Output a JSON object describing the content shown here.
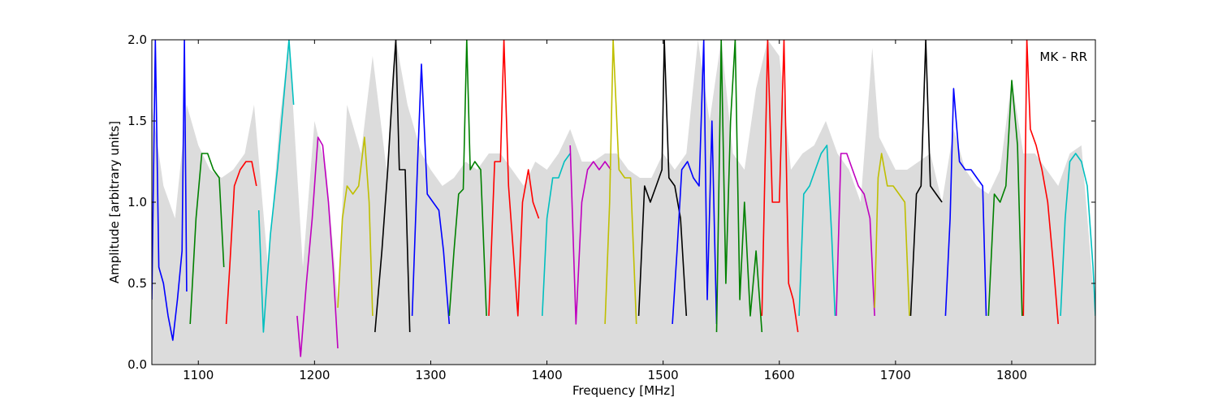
{
  "chart_data": {
    "type": "line",
    "title": "",
    "xlabel": "Frequency [MHz]",
    "ylabel": "Amplitude [arbitrary units]",
    "annotation": "MK - RR",
    "xlim": [
      1060,
      1872
    ],
    "ylim": [
      0.0,
      2.0
    ],
    "xticks": [
      1100,
      1200,
      1300,
      1400,
      1500,
      1600,
      1700,
      1800
    ],
    "yticks": [
      0.0,
      0.5,
      1.0,
      1.5,
      2.0
    ],
    "xtick_labels": [
      "1100",
      "1200",
      "1300",
      "1400",
      "1500",
      "1600",
      "1700",
      "1800"
    ],
    "ytick_labels": [
      "0.0",
      "0.5",
      "1.0",
      "1.5",
      "2.0"
    ],
    "grid": false,
    "background_envelope": {
      "color": "#bfbfbf",
      "x": [
        1060,
        1070,
        1080,
        1090,
        1100,
        1110,
        1120,
        1130,
        1140,
        1148,
        1160,
        1170,
        1178,
        1190,
        1200,
        1210,
        1220,
        1228,
        1240,
        1250,
        1262,
        1270,
        1280,
        1292,
        1300,
        1310,
        1320,
        1330,
        1340,
        1350,
        1360,
        1370,
        1380,
        1390,
        1400,
        1410,
        1420,
        1430,
        1440,
        1450,
        1460,
        1470,
        1480,
        1490,
        1500,
        1510,
        1520,
        1530,
        1540,
        1550,
        1560,
        1570,
        1580,
        1590,
        1600,
        1610,
        1620,
        1630,
        1640,
        1650,
        1660,
        1670,
        1680,
        1686,
        1700,
        1710,
        1720,
        1730,
        1740,
        1750,
        1760,
        1770,
        1780,
        1790,
        1800,
        1810,
        1820,
        1830,
        1840,
        1850,
        1860,
        1872
      ],
      "values": [
        1.6,
        1.1,
        0.9,
        1.6,
        1.35,
        1.2,
        1.15,
        1.2,
        1.3,
        1.6,
        0.6,
        1.5,
        2.0,
        0.6,
        1.5,
        1.2,
        0.4,
        1.6,
        1.3,
        1.9,
        1.2,
        2.0,
        1.6,
        1.3,
        1.2,
        1.1,
        1.15,
        1.25,
        1.2,
        1.3,
        1.3,
        1.2,
        1.1,
        1.25,
        1.2,
        1.3,
        1.45,
        1.25,
        1.25,
        1.3,
        1.3,
        1.2,
        1.15,
        1.15,
        1.3,
        1.2,
        1.3,
        2.0,
        1.5,
        2.0,
        1.3,
        1.2,
        1.7,
        2.0,
        1.9,
        1.2,
        1.3,
        1.35,
        1.5,
        1.3,
        1.2,
        1.0,
        1.95,
        1.4,
        1.2,
        1.2,
        1.25,
        1.3,
        1.0,
        1.45,
        1.2,
        1.1,
        1.05,
        1.2,
        1.75,
        1.3,
        1.3,
        1.2,
        1.1,
        1.3,
        1.35,
        0.3
      ]
    },
    "series": [
      {
        "color": "#0000ff",
        "x": [
          1060,
          1063,
          1066,
          1070,
          1074,
          1078,
          1082,
          1086,
          1088,
          1090
        ],
        "y": [
          0.4,
          2.0,
          0.6,
          0.5,
          0.3,
          0.15,
          0.4,
          0.7,
          2.0,
          0.45
        ]
      },
      {
        "color": "#008000",
        "x": [
          1093,
          1098,
          1103,
          1108,
          1113,
          1118,
          1122
        ],
        "y": [
          0.25,
          0.9,
          1.3,
          1.3,
          1.2,
          1.15,
          0.6
        ]
      },
      {
        "color": "#ff0000",
        "x": [
          1124,
          1127,
          1131,
          1136,
          1141,
          1146,
          1150
        ],
        "y": [
          0.25,
          0.6,
          1.1,
          1.2,
          1.25,
          1.25,
          1.1
        ]
      },
      {
        "color": "#00bfbf",
        "x": [
          1152,
          1156,
          1162,
          1168,
          1173,
          1178,
          1182
        ],
        "y": [
          0.95,
          0.2,
          0.8,
          1.2,
          1.6,
          2.0,
          1.6
        ]
      },
      {
        "color": "#bf00bf",
        "x": [
          1185,
          1188,
          1193,
          1198,
          1203,
          1207,
          1212,
          1216,
          1220
        ],
        "y": [
          0.3,
          0.05,
          0.5,
          0.9,
          1.4,
          1.35,
          1.0,
          0.6,
          0.1
        ]
      },
      {
        "color": "#bfbf00",
        "x": [
          1220,
          1224,
          1228,
          1233,
          1238,
          1243,
          1247,
          1250
        ],
        "y": [
          0.35,
          0.9,
          1.1,
          1.05,
          1.1,
          1.4,
          1.0,
          0.3
        ]
      },
      {
        "color": "#000000",
        "x": [
          1252,
          1258,
          1263,
          1268,
          1270,
          1273,
          1278,
          1282
        ],
        "y": [
          0.2,
          0.7,
          1.2,
          1.8,
          2.0,
          1.2,
          1.2,
          0.2
        ]
      },
      {
        "color": "#0000ff",
        "x": [
          1284,
          1289,
          1292,
          1297,
          1302,
          1307,
          1311,
          1316
        ],
        "y": [
          0.3,
          1.3,
          1.85,
          1.05,
          1.0,
          0.95,
          0.7,
          0.25
        ]
      },
      {
        "color": "#008000",
        "x": [
          1316,
          1320,
          1324,
          1328,
          1331,
          1334,
          1338,
          1343,
          1348
        ],
        "y": [
          0.3,
          0.7,
          1.05,
          1.08,
          2.0,
          1.2,
          1.25,
          1.2,
          0.3
        ]
      },
      {
        "color": "#ff0000",
        "x": [
          1350,
          1355,
          1360,
          1363,
          1367,
          1371,
          1375,
          1379,
          1384,
          1388,
          1393
        ],
        "y": [
          0.3,
          1.25,
          1.25,
          2.0,
          1.1,
          0.7,
          0.3,
          1.0,
          1.2,
          1.0,
          0.9
        ]
      },
      {
        "color": "#00bfbf",
        "x": [
          1396,
          1400,
          1405,
          1410,
          1415,
          1420
        ],
        "y": [
          0.3,
          0.9,
          1.15,
          1.15,
          1.25,
          1.3
        ]
      },
      {
        "color": "#bf00bf",
        "x": [
          1420,
          1425,
          1430,
          1435,
          1440,
          1445,
          1450,
          1455
        ],
        "y": [
          1.35,
          0.25,
          1.0,
          1.2,
          1.25,
          1.2,
          1.25,
          1.2
        ]
      },
      {
        "color": "#bfbf00",
        "x": [
          1450,
          1454,
          1457,
          1462,
          1467,
          1472,
          1477
        ],
        "y": [
          0.25,
          1.0,
          2.0,
          1.2,
          1.15,
          1.15,
          0.25
        ]
      },
      {
        "color": "#000000",
        "x": [
          1479,
          1484,
          1489,
          1494,
          1499,
          1501,
          1505,
          1510,
          1515,
          1520
        ],
        "y": [
          0.3,
          1.1,
          1.0,
          1.1,
          1.2,
          2.0,
          1.15,
          1.1,
          0.9,
          0.3
        ]
      },
      {
        "color": "#0000ff",
        "x": [
          1508,
          1512,
          1516,
          1521,
          1526,
          1531,
          1535,
          1538,
          1542,
          1546
        ],
        "y": [
          0.25,
          0.7,
          1.2,
          1.25,
          1.15,
          1.1,
          2.0,
          0.4,
          1.5,
          0.25
        ]
      },
      {
        "color": "#008000",
        "x": [
          1546,
          1550,
          1554,
          1558,
          1562,
          1566,
          1570,
          1575,
          1580,
          1585
        ],
        "y": [
          0.2,
          2.0,
          0.5,
          1.5,
          2.0,
          0.4,
          1.0,
          0.3,
          0.7,
          0.2
        ]
      },
      {
        "color": "#ff0000",
        "x": [
          1585,
          1590,
          1594,
          1600,
          1604,
          1608,
          1612,
          1616
        ],
        "y": [
          0.3,
          2.0,
          1.0,
          1.0,
          2.0,
          0.5,
          0.4,
          0.2
        ]
      },
      {
        "color": "#00bfbf",
        "x": [
          1617,
          1621,
          1626,
          1631,
          1636,
          1641,
          1645,
          1648
        ],
        "y": [
          0.3,
          1.05,
          1.1,
          1.2,
          1.3,
          1.35,
          0.8,
          0.3
        ]
      },
      {
        "color": "#bf00bf",
        "x": [
          1649,
          1653,
          1658,
          1663,
          1668,
          1673,
          1678,
          1682
        ],
        "y": [
          0.3,
          1.3,
          1.3,
          1.2,
          1.1,
          1.05,
          0.9,
          0.3
        ]
      },
      {
        "color": "#bfbf00",
        "x": [
          1682,
          1685,
          1688,
          1693,
          1698,
          1703,
          1708,
          1712
        ],
        "y": [
          0.35,
          1.15,
          1.3,
          1.1,
          1.1,
          1.05,
          1.0,
          0.3
        ]
      },
      {
        "color": "#000000",
        "x": [
          1713,
          1718,
          1722,
          1726,
          1730,
          1735,
          1740
        ],
        "y": [
          0.3,
          1.05,
          1.1,
          2.0,
          1.1,
          1.05,
          1.0
        ]
      },
      {
        "color": "#0000ff",
        "x": [
          1743,
          1747,
          1750,
          1755,
          1760,
          1765,
          1770,
          1775,
          1778
        ],
        "y": [
          0.3,
          0.9,
          1.7,
          1.25,
          1.2,
          1.2,
          1.15,
          1.1,
          0.3
        ]
      },
      {
        "color": "#008000",
        "x": [
          1780,
          1785,
          1790,
          1795,
          1800,
          1805,
          1809
        ],
        "y": [
          0.3,
          1.05,
          1.0,
          1.1,
          1.75,
          1.35,
          0.3
        ]
      },
      {
        "color": "#ff0000",
        "x": [
          1810,
          1813,
          1816,
          1821,
          1826,
          1831,
          1836,
          1840
        ],
        "y": [
          0.3,
          2.0,
          1.45,
          1.35,
          1.2,
          1.0,
          0.6,
          0.25
        ]
      },
      {
        "color": "#00bfbf",
        "x": [
          1842,
          1846,
          1850,
          1855,
          1860,
          1865,
          1870,
          1872
        ],
        "y": [
          0.3,
          0.9,
          1.25,
          1.3,
          1.25,
          1.1,
          0.6,
          0.3
        ]
      }
    ]
  }
}
